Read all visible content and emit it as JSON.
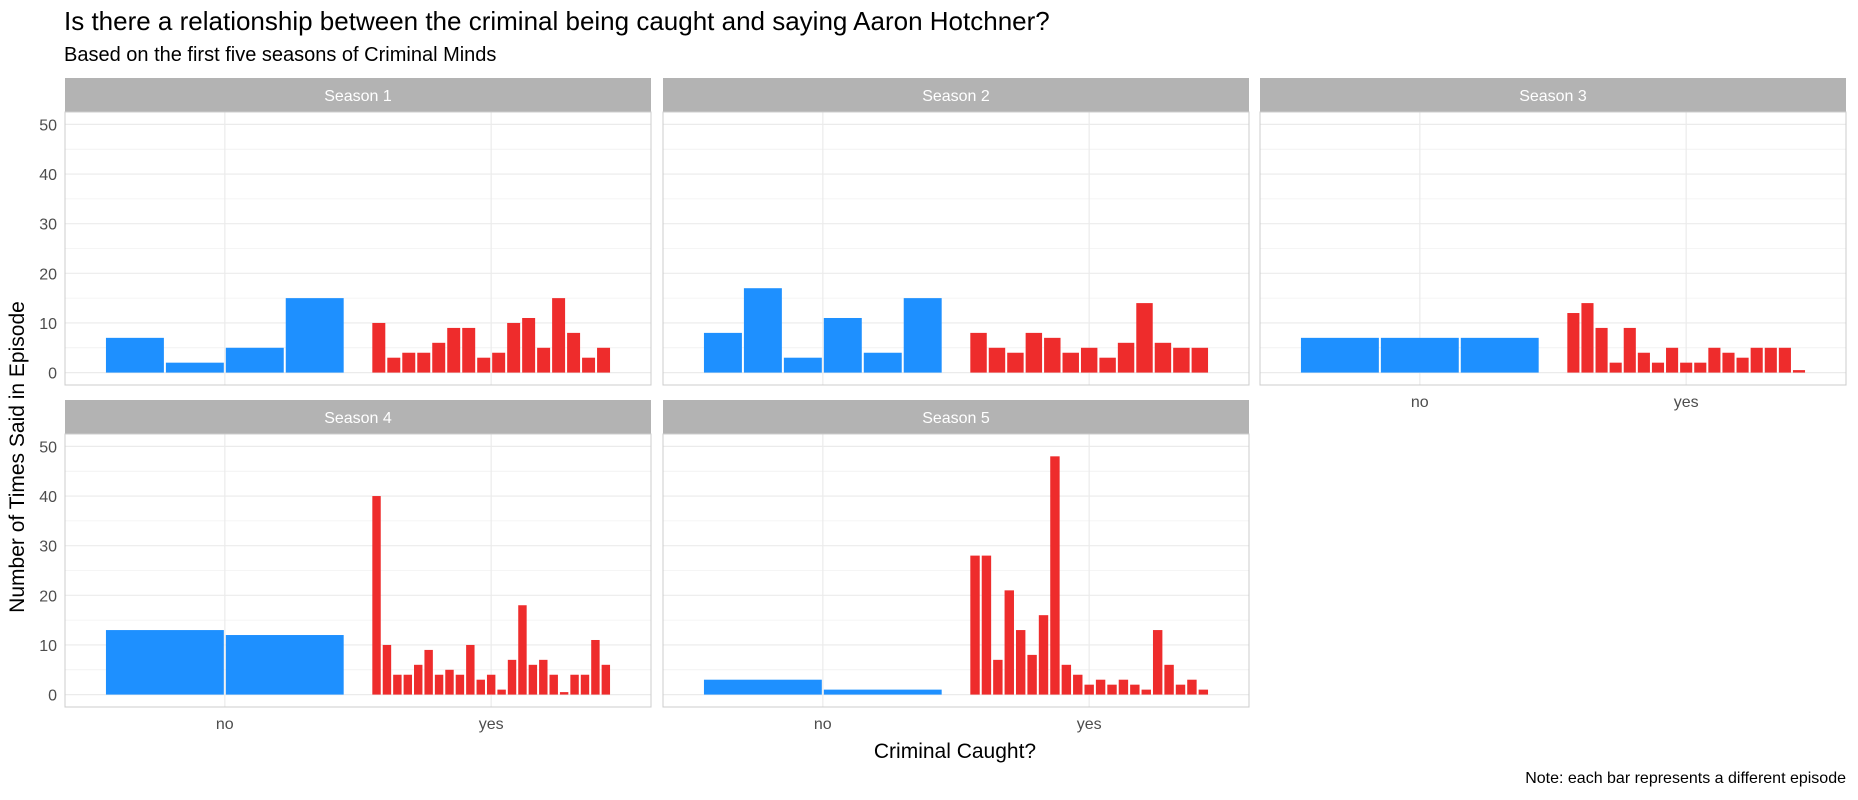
{
  "title": "Is there a relationship between the criminal being caught and saying Aaron Hotchner?",
  "subtitle": "Based on the first five seasons of Criminal Minds",
  "caption": "Note: each bar represents a different episode",
  "colors": {
    "no": "#1E90FF",
    "yes": "#EE2C2C",
    "strip": "#B3B3B3",
    "grid": "#EBEBEB",
    "border": "#CCCCCC"
  },
  "chart_data": {
    "type": "bar",
    "xlabel": "Criminal Caught?",
    "ylabel": "Number of Times Said in Episode",
    "categories": [
      "no",
      "yes"
    ],
    "ylim": [
      0,
      50
    ],
    "yticks": [
      0,
      10,
      20,
      30,
      40,
      50
    ],
    "facets": [
      {
        "label": "Season 1",
        "no": [
          7,
          2,
          5,
          15
        ],
        "yes": [
          10,
          3,
          4,
          4,
          6,
          9,
          9,
          3,
          4,
          10,
          11,
          5,
          15,
          8,
          3,
          5
        ]
      },
      {
        "label": "Season 2",
        "no": [
          8,
          17,
          3,
          11,
          4,
          15
        ],
        "yes": [
          8,
          5,
          4,
          8,
          7,
          4,
          5,
          3,
          6,
          14,
          6,
          5,
          5
        ]
      },
      {
        "label": "Season 3",
        "no": [
          7,
          7,
          7
        ],
        "yes": [
          12,
          14,
          9,
          2,
          9,
          4,
          2,
          5,
          2,
          2,
          5,
          4,
          3,
          5,
          5,
          5,
          0.5
        ]
      },
      {
        "label": "Season 4",
        "no": [
          13,
          12
        ],
        "yes": [
          40,
          10,
          4,
          4,
          6,
          9,
          4,
          5,
          4,
          10,
          3,
          4,
          1,
          7,
          18,
          6,
          7,
          4,
          0.5,
          4,
          4,
          11,
          6
        ]
      },
      {
        "label": "Season 5",
        "no": [
          3,
          1
        ],
        "yes": [
          28,
          28,
          7,
          21,
          13,
          8,
          16,
          48,
          6,
          4,
          2,
          3,
          2,
          3,
          2,
          1,
          13,
          6,
          2,
          3,
          1
        ]
      }
    ]
  }
}
